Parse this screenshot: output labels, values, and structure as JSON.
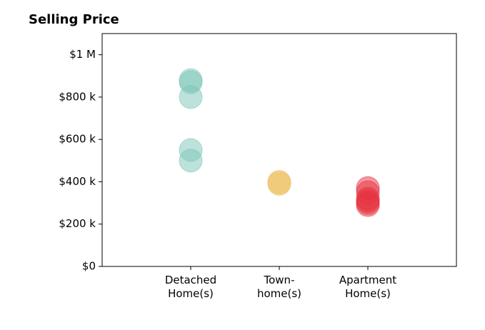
{
  "chart_data": {
    "type": "strip",
    "title": "Selling Price",
    "categories": [
      [
        "Detached",
        "Home(s)"
      ],
      [
        "Town-",
        "home(s)"
      ],
      [
        "Apartment",
        "Home(s)"
      ]
    ],
    "values": [
      [
        880000,
        870000,
        800000,
        550000,
        500000
      ],
      [
        400000,
        390000,
        395000
      ],
      [
        370000,
        350000,
        320000,
        300000,
        310000,
        290000
      ]
    ],
    "colors": [
      "#7cc5b7",
      "#eec46a",
      "#e5323f"
    ],
    "ylim": [
      0,
      1100000
    ],
    "yticks": [
      {
        "value": 0,
        "label": "$0"
      },
      {
        "value": 200000,
        "label": "$200 k"
      },
      {
        "value": 400000,
        "label": "$400 k"
      },
      {
        "value": 600000,
        "label": "$600 k"
      },
      {
        "value": 800000,
        "label": "$800 k"
      },
      {
        "value": 1000000,
        "label": "$1 M"
      }
    ],
    "grid": false
  }
}
